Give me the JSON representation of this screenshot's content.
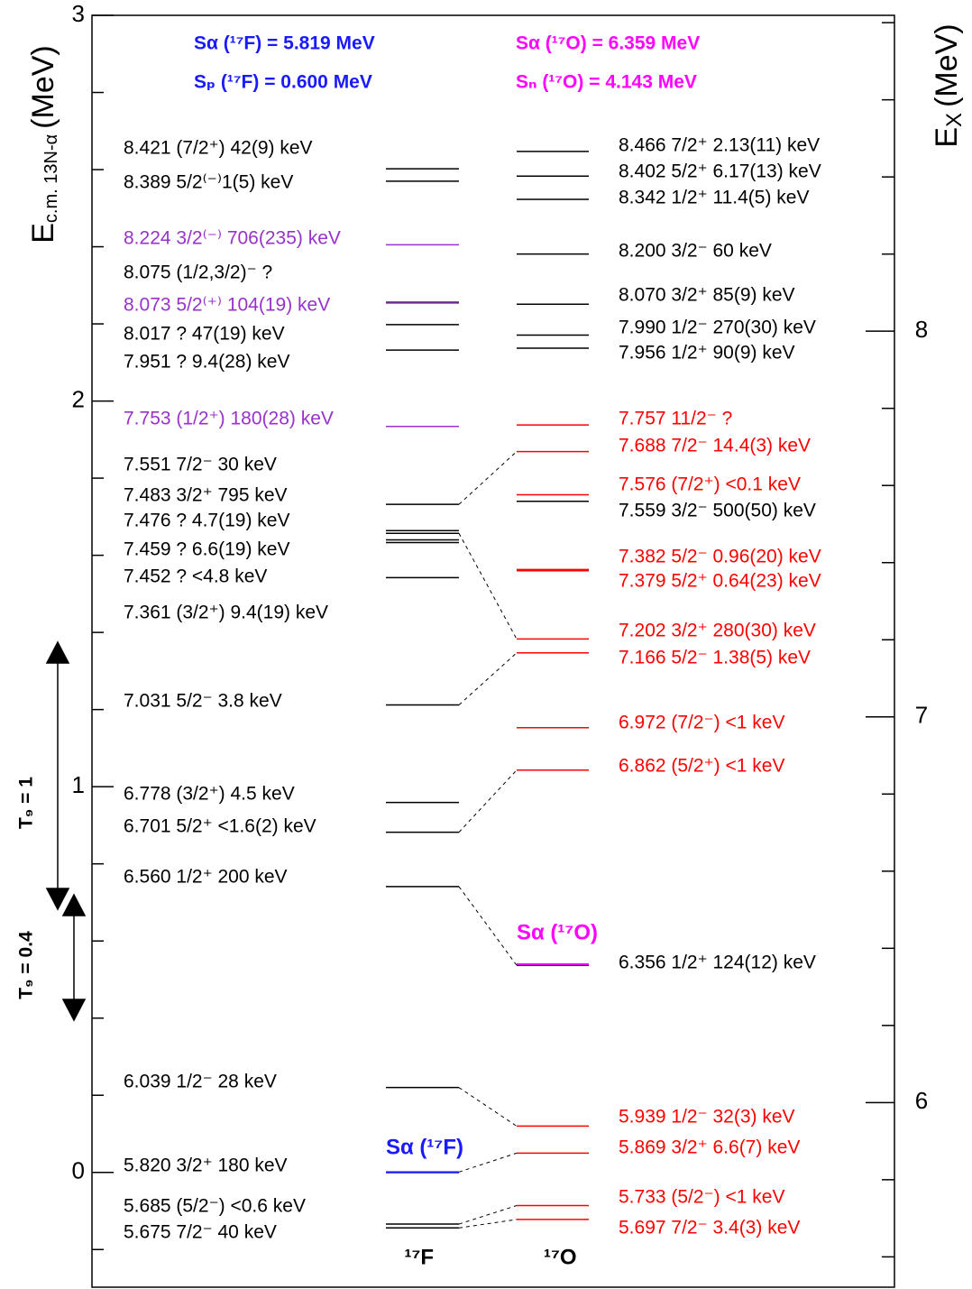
{
  "axes": {
    "left": {
      "title": "E",
      "title_sub": "c.m. 13N-α",
      "title_unit": "(MeV)",
      "ylim": [
        -0.3,
        3
      ],
      "yticks": [
        0,
        1,
        2,
        3
      ],
      "minor_ticks": [
        -0.2,
        0.2,
        0.4,
        0.6,
        0.8,
        1.2,
        1.4,
        1.6,
        1.8,
        2.2,
        2.4,
        2.6,
        2.8
      ]
    },
    "right": {
      "title": "E",
      "title_sub": "X",
      "title_unit": "(MeV)",
      "ylim": [
        5.519,
        8.819
      ],
      "yticks": [
        6,
        7,
        8
      ],
      "minor_ticks": [
        5.6,
        5.8,
        6.2,
        6.4,
        6.6,
        6.8,
        7.2,
        7.4,
        7.6,
        7.8,
        8.2,
        8.4,
        8.6,
        8.8
      ]
    }
  },
  "thresholds": [
    {
      "label": "Sα (¹⁷F) = 5.819 MeV",
      "color": "#1a1aff"
    },
    {
      "label": "Sₚ (¹⁷F) = 0.600 MeV",
      "color": "#1a1aff"
    },
    {
      "label": "Sα (¹⁷O) = 6.359 MeV",
      "color": "#ff00ff"
    },
    {
      "label": "Sₙ (¹⁷O) = 4.143 MeV",
      "color": "#ff00ff"
    }
  ],
  "threshold_lines": [
    {
      "label": "Sα (¹⁷F)",
      "value": 5.819,
      "color": "#1a1aff"
    },
    {
      "label": "Sα (¹⁷O)",
      "value": 6.359,
      "color": "#ff00ff"
    }
  ],
  "temperature_labels": [
    "T₉ = 1",
    "T₉ = 0.4"
  ],
  "columns": [
    {
      "label": "¹⁷F",
      "levels": [
        {
          "energy": 8.421,
          "text": "8.421 (7/2⁺) 42(9) keV",
          "color": "#000000"
        },
        {
          "energy": 8.389,
          "text": "8.389 5/2⁽⁻⁾1(5) keV",
          "color": "#000000"
        },
        {
          "energy": 8.224,
          "text": "8.224 3/2⁽⁻⁾ 706(235) keV",
          "color": "#9932cc"
        },
        {
          "energy": 8.075,
          "text": "8.075 (1/2,3/2)⁻ ?",
          "color": "#000000"
        },
        {
          "energy": 8.073,
          "text": "8.073 5/2⁽⁺⁾ 104(19) keV",
          "color": "#9932cc"
        },
        {
          "energy": 8.017,
          "text": "8.017 ? 47(19) keV",
          "color": "#000000"
        },
        {
          "energy": 7.951,
          "text": "7.951 ? 9.4(28) keV",
          "color": "#000000"
        },
        {
          "energy": 7.753,
          "text": "7.753 (1/2⁺) 180(28) keV",
          "color": "#9932cc"
        },
        {
          "energy": 7.551,
          "text": "7.551 7/2⁻ 30 keV",
          "color": "#000000"
        },
        {
          "energy": 7.483,
          "text": "7.483 3/2⁺ 795 keV",
          "color": "#000000"
        },
        {
          "energy": 7.476,
          "text": "7.476 ? 4.7(19) keV",
          "color": "#000000"
        },
        {
          "energy": 7.459,
          "text": "7.459 ? 6.6(19) keV",
          "color": "#000000"
        },
        {
          "energy": 7.452,
          "text": "7.452 ? <4.8 keV",
          "color": "#000000"
        },
        {
          "energy": 7.361,
          "text": "7.361 (3/2⁺) 9.4(19) keV",
          "color": "#000000"
        },
        {
          "energy": 7.031,
          "text": "7.031 5/2⁻ 3.8 keV",
          "color": "#000000"
        },
        {
          "energy": 6.778,
          "text": "6.778 (3/2⁺) 4.5 keV",
          "color": "#000000"
        },
        {
          "energy": 6.701,
          "text": "6.701 5/2⁺ <1.6(2) keV",
          "color": "#000000"
        },
        {
          "energy": 6.56,
          "text": "6.560 1/2⁺ 200 keV",
          "color": "#000000"
        },
        {
          "energy": 6.039,
          "text": "6.039 1/2⁻ 28 keV",
          "color": "#000000"
        },
        {
          "energy": 5.82,
          "text": "5.820 3/2⁺ 180 keV",
          "color": "#000000"
        },
        {
          "energy": 5.685,
          "text": "5.685 (5/2⁻) <0.6 keV",
          "color": "#000000"
        },
        {
          "energy": 5.675,
          "text": "5.675 7/2⁻ 40 keV",
          "color": "#000000"
        }
      ]
    },
    {
      "label": "¹⁷O",
      "levels": [
        {
          "energy": 8.466,
          "text": "8.466 7/2⁺ 2.13(11) keV",
          "color": "#000000"
        },
        {
          "energy": 8.402,
          "text": "8.402 5/2⁺ 6.17(13) keV",
          "color": "#000000"
        },
        {
          "energy": 8.342,
          "text": "8.342 1/2⁺ 11.4(5) keV",
          "color": "#000000"
        },
        {
          "energy": 8.2,
          "text": "8.200 3/2⁻ 60 keV",
          "color": "#000000"
        },
        {
          "energy": 8.07,
          "text": "8.070 3/2⁺ 85(9) keV",
          "color": "#000000"
        },
        {
          "energy": 7.99,
          "text": "7.990 1/2⁻ 270(30) keV",
          "color": "#000000"
        },
        {
          "energy": 7.956,
          "text": "7.956 1/2⁺ 90(9) keV",
          "color": "#000000"
        },
        {
          "energy": 7.757,
          "text": "7.757 11/2⁻ ?",
          "color": "#ff0000"
        },
        {
          "energy": 7.688,
          "text": "7.688 7/2⁻ 14.4(3) keV",
          "color": "#ff0000"
        },
        {
          "energy": 7.576,
          "text": "7.576 (7/2⁺) <0.1 keV",
          "color": "#ff0000"
        },
        {
          "energy": 7.559,
          "text": "7.559 3/2⁻ 500(50) keV",
          "color": "#000000"
        },
        {
          "energy": 7.382,
          "text": "7.382 5/2⁻ 0.96(20) keV",
          "color": "#ff0000"
        },
        {
          "energy": 7.379,
          "text": "7.379 5/2⁺ 0.64(23) keV",
          "color": "#ff0000"
        },
        {
          "energy": 7.202,
          "text": "7.202 3/2⁺ 280(30) keV",
          "color": "#ff0000"
        },
        {
          "energy": 7.166,
          "text": "7.166 5/2⁻ 1.38(5) keV",
          "color": "#ff0000"
        },
        {
          "energy": 6.972,
          "text": "6.972 (7/2⁻) <1 keV",
          "color": "#ff0000"
        },
        {
          "energy": 6.862,
          "text": "6.862 (5/2⁺) <1 keV",
          "color": "#ff0000"
        },
        {
          "energy": 6.356,
          "text": "6.356 1/2⁺ 124(12) keV",
          "color": "#000000"
        },
        {
          "energy": 5.939,
          "text": "5.939 1/2⁻ 32(3) keV",
          "color": "#ff0000"
        },
        {
          "energy": 5.869,
          "text": "5.869 3/2⁺ 6.6(7) keV",
          "color": "#ff0000"
        },
        {
          "energy": 5.733,
          "text": "5.733 (5/2⁻) <1 keV",
          "color": "#ff0000"
        },
        {
          "energy": 5.697,
          "text": "5.697 7/2⁻ 3.4(3) keV",
          "color": "#ff0000"
        }
      ]
    }
  ]
}
